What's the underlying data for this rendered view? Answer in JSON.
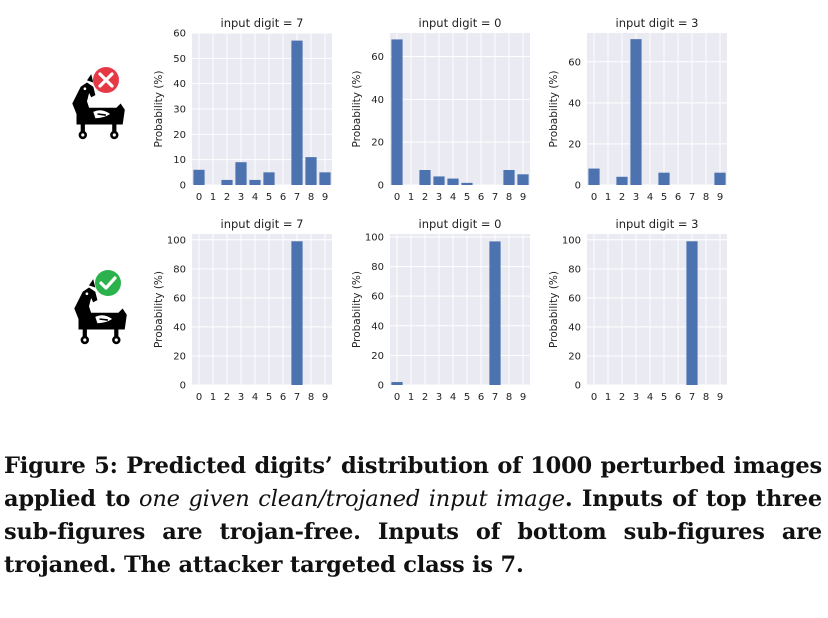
{
  "chart_data": [
    {
      "type": "bar",
      "title": "input digit = 7",
      "ylabel": "Probability (%)",
      "categories": [
        "0",
        "1",
        "2",
        "3",
        "4",
        "5",
        "6",
        "7",
        "8",
        "9"
      ],
      "values": [
        6,
        0,
        2,
        9,
        2,
        5,
        0,
        57,
        11,
        5
      ],
      "ylim": [
        0,
        60
      ],
      "yticks": [
        0,
        10,
        20,
        30,
        40,
        50,
        60
      ],
      "grid": true
    },
    {
      "type": "bar",
      "title": "input digit = 0",
      "ylabel": "Probability (%)",
      "categories": [
        "0",
        "1",
        "2",
        "3",
        "4",
        "5",
        "6",
        "7",
        "8",
        "9"
      ],
      "values": [
        68,
        0,
        7,
        4,
        3,
        1,
        0,
        0,
        7,
        5
      ],
      "ylim": [
        0,
        71
      ],
      "yticks": [
        0,
        20,
        40,
        60
      ],
      "grid": true
    },
    {
      "type": "bar",
      "title": "input digit = 3",
      "ylabel": "Probability (%)",
      "categories": [
        "0",
        "1",
        "2",
        "3",
        "4",
        "5",
        "6",
        "7",
        "8",
        "9"
      ],
      "values": [
        8,
        0,
        4,
        71,
        0,
        6,
        0,
        0,
        0,
        6
      ],
      "ylim": [
        0,
        74
      ],
      "yticks": [
        0,
        20,
        40,
        60
      ],
      "grid": true
    },
    {
      "type": "bar",
      "title": "input digit = 7",
      "ylabel": "Probability (%)",
      "categories": [
        "0",
        "1",
        "2",
        "3",
        "4",
        "5",
        "6",
        "7",
        "8",
        "9"
      ],
      "values": [
        0,
        0,
        0,
        0,
        0,
        0,
        0,
        99,
        0,
        0
      ],
      "ylim": [
        0,
        104
      ],
      "yticks": [
        0,
        20,
        40,
        60,
        80,
        100
      ],
      "grid": true
    },
    {
      "type": "bar",
      "title": "input digit = 0",
      "ylabel": "Probability (%)",
      "categories": [
        "0",
        "1",
        "2",
        "3",
        "4",
        "5",
        "6",
        "7",
        "8",
        "9"
      ],
      "values": [
        2,
        0,
        0,
        0,
        0,
        0,
        0,
        97,
        0,
        0
      ],
      "ylim": [
        0,
        102
      ],
      "yticks": [
        0,
        20,
        40,
        60,
        80,
        100
      ],
      "grid": true
    },
    {
      "type": "bar",
      "title": "input digit = 3",
      "ylabel": "Probability (%)",
      "categories": [
        "0",
        "1",
        "2",
        "3",
        "4",
        "5",
        "6",
        "7",
        "8",
        "9"
      ],
      "values": [
        0,
        0,
        0,
        0,
        0,
        0,
        0,
        99,
        0,
        0
      ],
      "ylim": [
        0,
        104
      ],
      "yticks": [
        0,
        20,
        40,
        60,
        80,
        100
      ],
      "grid": true
    }
  ],
  "colors": {
    "bar": "#4c72b0",
    "plot_bg": "#eaeaf2",
    "grid": "#ffffff",
    "cross_badge": "#e63946",
    "check_badge": "#2bb24c"
  },
  "icons": {
    "top_row": "trojan-horse-cross-icon",
    "bottom_row": "trojan-horse-check-icon"
  },
  "caption": {
    "label": "Figure 5: Predicted digits’ distribution of 1000 perturbed images applied to",
    "italic": "one given clean/trojaned input image",
    "rest": ". Inputs of top three sub-figures are trojan-free. Inputs of bottom sub-figures are trojaned. The attacker targeted class is 7."
  }
}
